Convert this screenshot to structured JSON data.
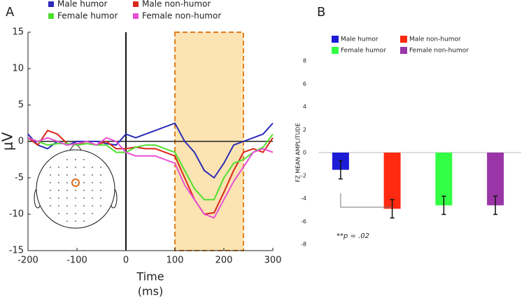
{
  "chart_data": [
    {
      "type": "line",
      "panel": "A",
      "xlabel": [
        "Time",
        "(ms)"
      ],
      "ylabel": "μV",
      "x": [
        -200,
        -180,
        -160,
        -140,
        -120,
        -100,
        -80,
        -60,
        -40,
        -20,
        0,
        20,
        40,
        60,
        80,
        100,
        120,
        140,
        160,
        180,
        200,
        220,
        240,
        260,
        280,
        300
      ],
      "series": [
        {
          "name": "Male humor",
          "color": "#2b2bb8",
          "values": [
            1,
            -0.5,
            -1,
            0,
            -0.5,
            0,
            0,
            0,
            -0.3,
            -0.5,
            1,
            0.5,
            1,
            1.5,
            2,
            2.5,
            0,
            -1.5,
            -4,
            -5,
            -3,
            -0.5,
            0,
            0.5,
            1,
            2.5
          ]
        },
        {
          "name": "Male non-humor",
          "color": "#d8281a",
          "values": [
            0.5,
            -0.5,
            1.5,
            1,
            -0.3,
            -0.5,
            0,
            -0.5,
            0,
            -1,
            -1,
            -0.8,
            -1,
            -1,
            -1.5,
            -2,
            -5,
            -8,
            -10,
            -9.8,
            -7,
            -4,
            -1.5,
            -1,
            -1.5,
            0.5
          ]
        },
        {
          "name": "Female humor",
          "color": "#4ee02e",
          "values": [
            0.5,
            0,
            -0.5,
            -0.3,
            -0.3,
            -0.5,
            -0.3,
            -0.5,
            -0.5,
            -1.5,
            -1.5,
            -0.8,
            -0.5,
            -0.5,
            -1,
            -1.5,
            -4,
            -6.5,
            -8,
            -8,
            -5,
            -3,
            -2.5,
            -1.5,
            -0.8,
            1
          ]
        },
        {
          "name": "Female non-humor",
          "color": "#e84fd8",
          "values": [
            0.5,
            0,
            0.5,
            0,
            -0.5,
            -0.3,
            0,
            -0.5,
            0.5,
            0,
            -1.5,
            -2,
            -2,
            -2,
            -2.5,
            -3,
            -6,
            -8,
            -10,
            -10.5,
            -8,
            -5.5,
            -3.5,
            -1.5,
            -1,
            -1.5
          ]
        }
      ],
      "xlim": [
        -200,
        300
      ],
      "xticks": [
        -200,
        -100,
        0,
        100,
        200,
        300
      ],
      "ylim": [
        -15,
        15
      ],
      "yticks": [
        -15,
        -10,
        -5,
        0,
        5,
        10,
        15
      ],
      "highlight_x": [
        100,
        240
      ]
    },
    {
      "type": "bar",
      "panel": "B",
      "ylabel": "FZ MEAN AMPLITUDE",
      "categories": [
        "Male humor",
        "Male non-humor",
        "Female humor",
        "Female non-humor"
      ],
      "values": [
        -1.5,
        -4.9,
        -4.6,
        -4.6
      ],
      "errors": [
        0.8,
        0.8,
        0.8,
        0.8
      ],
      "colors": [
        "#1c1cd6",
        "#ff2a10",
        "#33ff44",
        "#9a35a8"
      ],
      "ylim": [
        -8,
        8
      ],
      "yticks": [
        -8,
        -6,
        -4,
        -2,
        0,
        2,
        4,
        6,
        8
      ],
      "annotation": "**p = .02"
    }
  ]
}
